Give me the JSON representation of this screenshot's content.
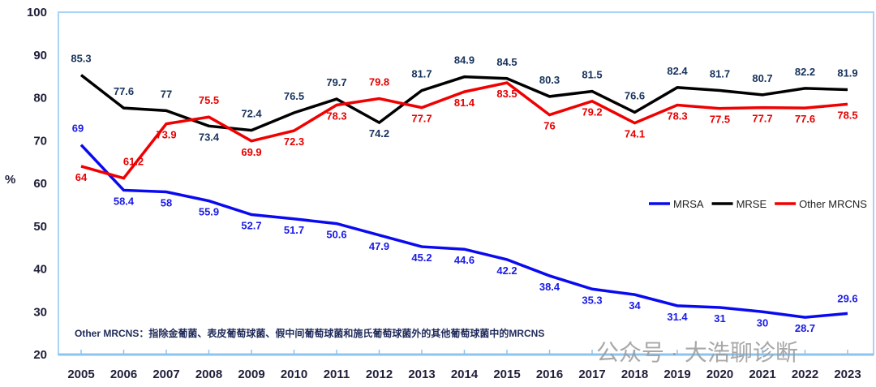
{
  "chart_data": {
    "type": "line",
    "title": "",
    "xlabel": "",
    "ylabel": "%",
    "ylim": [
      20,
      100
    ],
    "yticks": [
      20,
      30,
      40,
      50,
      60,
      70,
      80,
      90,
      100
    ],
    "x": [
      "2005",
      "2006",
      "2007",
      "2008",
      "2009",
      "2010",
      "2011",
      "2012",
      "2013",
      "2014",
      "2015",
      "2016",
      "2017",
      "2018",
      "2019",
      "2020",
      "2021",
      "2022",
      "2023"
    ],
    "legend_position": "right",
    "series": [
      {
        "name": "MRSA",
        "color": "#0a0af0",
        "values": [
          69,
          58.4,
          58,
          55.9,
          52.7,
          51.7,
          50.6,
          47.9,
          45.2,
          44.6,
          42.2,
          38.4,
          35.3,
          34,
          31.4,
          31,
          30,
          28.7,
          29.6
        ]
      },
      {
        "name": "MRSE",
        "color": "#000000",
        "values": [
          85.3,
          77.6,
          77,
          73.4,
          72.4,
          76.5,
          79.7,
          74.2,
          81.7,
          84.9,
          84.5,
          80.3,
          81.5,
          76.6,
          82.4,
          81.7,
          80.7,
          82.2,
          81.9
        ]
      },
      {
        "name": "Other MRCNS",
        "color": "#f00000",
        "values": [
          64,
          61.2,
          73.9,
          75.5,
          69.9,
          72.3,
          78.3,
          79.8,
          77.7,
          81.4,
          83.5,
          76,
          79.2,
          74.1,
          78.3,
          77.5,
          77.7,
          77.6,
          78.5
        ]
      }
    ],
    "annotation": "Other MRCNS：指除金葡菌、表皮葡萄球菌、假中间葡萄球菌和施氏葡萄球菌外的其他葡萄球菌中的MRCNS"
  },
  "watermark": "公众号 · 大浩聊诊断"
}
